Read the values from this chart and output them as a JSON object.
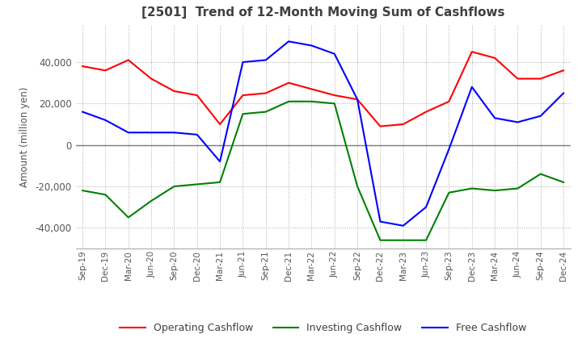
{
  "title": "[2501]  Trend of 12-Month Moving Sum of Cashflows",
  "ylabel": "Amount (million yen)",
  "ylim": [
    -50000,
    58000
  ],
  "yticks": [
    -40000,
    -20000,
    0,
    20000,
    40000
  ],
  "labels": [
    "Sep-19",
    "Dec-19",
    "Mar-20",
    "Jun-20",
    "Sep-20",
    "Dec-20",
    "Mar-21",
    "Jun-21",
    "Sep-21",
    "Dec-21",
    "Mar-22",
    "Jun-22",
    "Sep-22",
    "Dec-22",
    "Mar-23",
    "Jun-23",
    "Sep-23",
    "Dec-23",
    "Mar-24",
    "Jun-24",
    "Sep-24",
    "Dec-24"
  ],
  "operating": [
    38000,
    36000,
    41000,
    32000,
    26000,
    24000,
    10000,
    24000,
    25000,
    30000,
    27000,
    24000,
    22000,
    9000,
    10000,
    16000,
    21000,
    45000,
    42000,
    32000,
    32000,
    36000
  ],
  "investing": [
    -22000,
    -24000,
    -35000,
    -27000,
    -20000,
    -19000,
    -18000,
    15000,
    16000,
    21000,
    21000,
    20000,
    -20000,
    -46000,
    -46000,
    -46000,
    -23000,
    -21000,
    -22000,
    -21000,
    -14000,
    -18000
  ],
  "free": [
    16000,
    12000,
    6000,
    6000,
    6000,
    5000,
    -8000,
    40000,
    41000,
    50000,
    48000,
    44000,
    22000,
    -37000,
    -39000,
    -30000,
    -2000,
    28000,
    13000,
    11000,
    14000,
    25000
  ],
  "op_color": "#ff0000",
  "inv_color": "#008000",
  "free_color": "#0000ff",
  "grid_color": "#aaaaaa",
  "bg_color": "#ffffff",
  "title_color": "#404040",
  "legend_labels": [
    "Operating Cashflow",
    "Investing Cashflow",
    "Free Cashflow"
  ]
}
